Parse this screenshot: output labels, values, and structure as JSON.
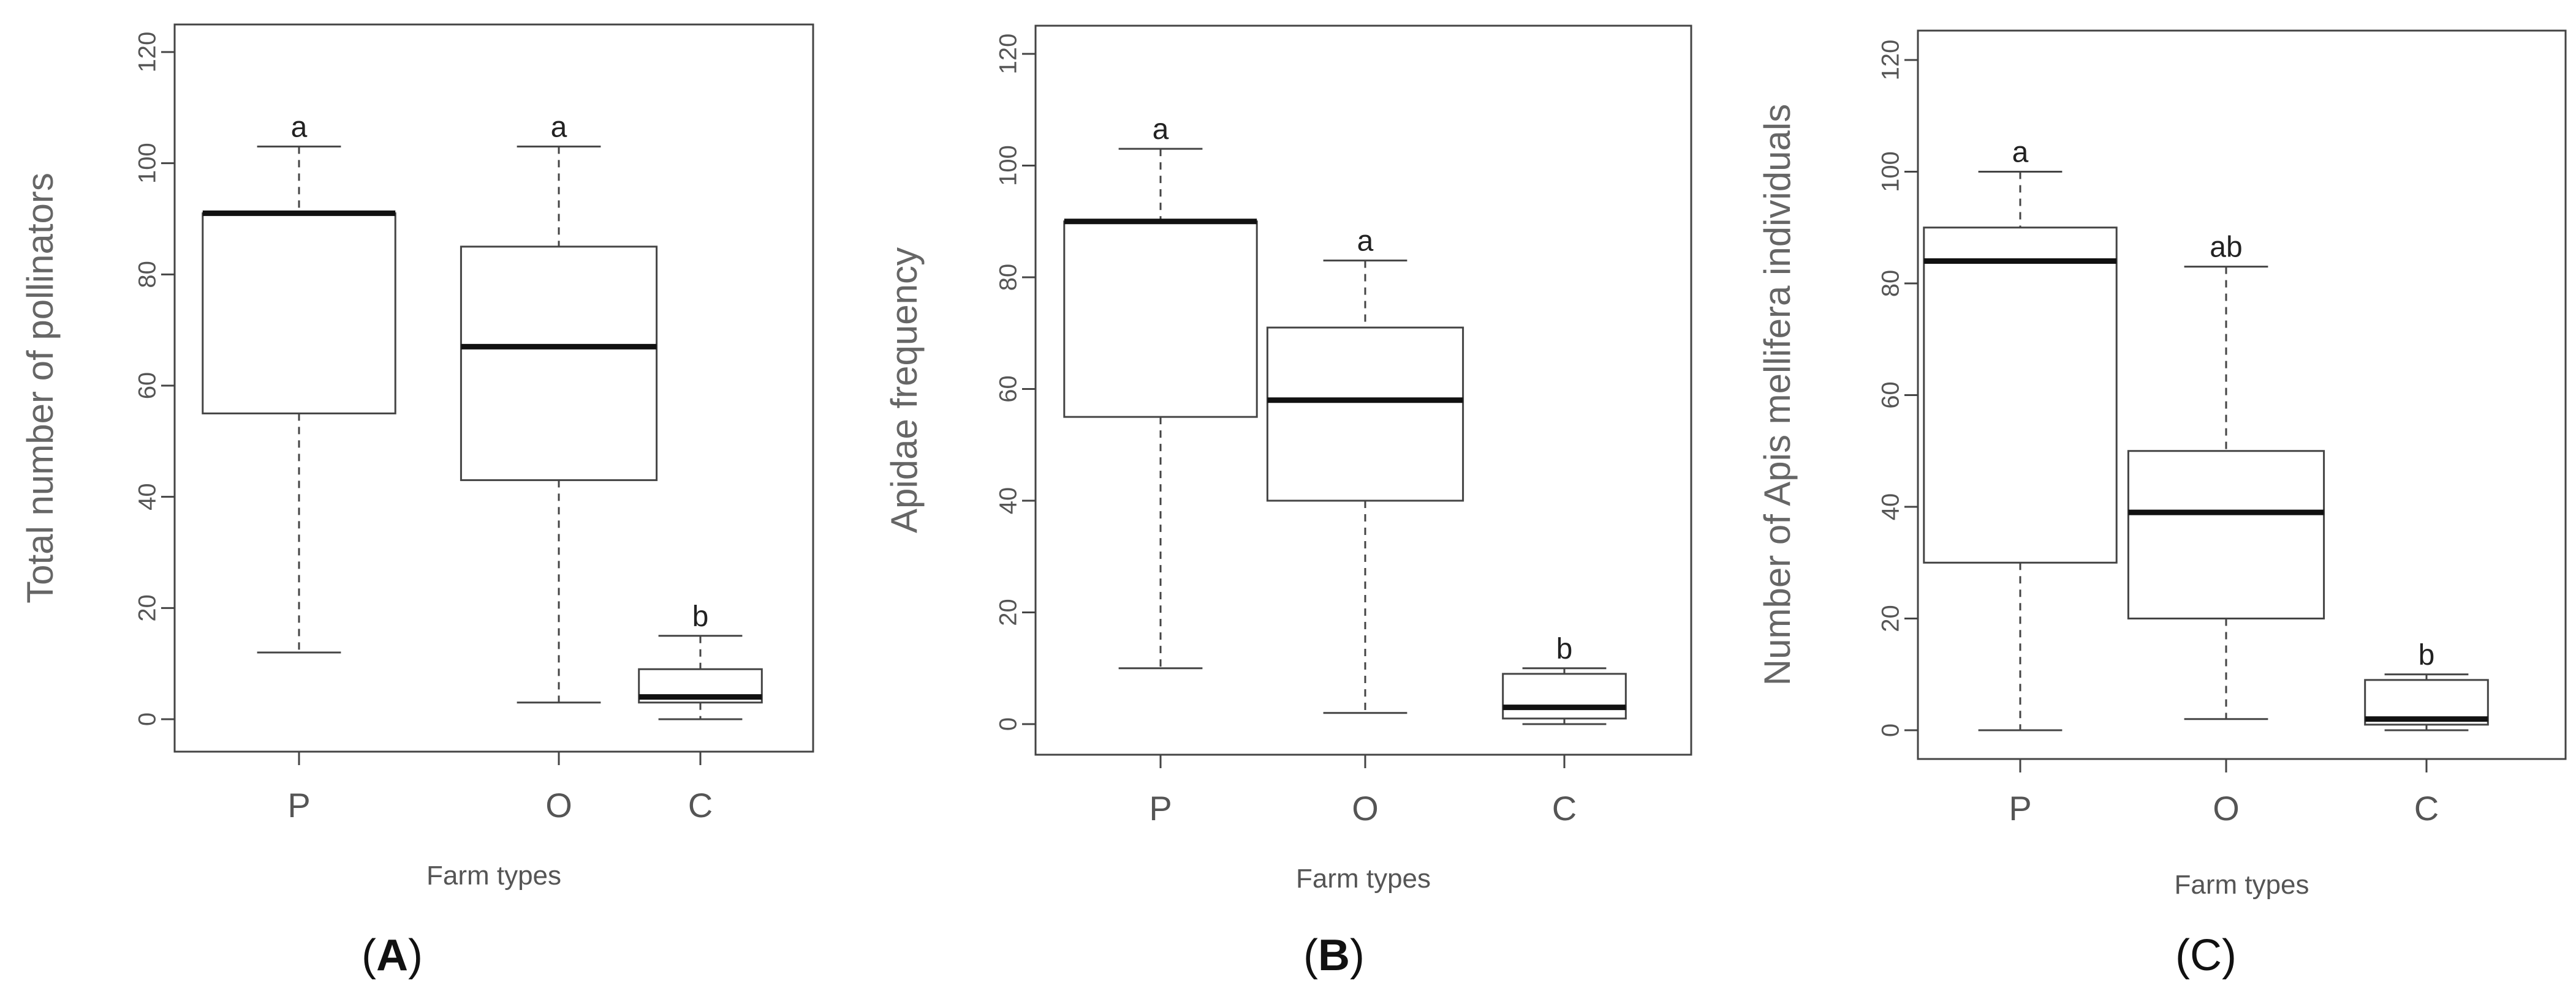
{
  "chart_data": [
    {
      "type": "boxplot",
      "panel_label": "A",
      "xlabel": "Farm types",
      "ylabel": "Total number of pollinators",
      "ylim": [
        0,
        120
      ],
      "yticks": [
        "0",
        "20",
        "40",
        "60",
        "80",
        "100",
        "120"
      ],
      "grid": false,
      "categories": [
        "P",
        "O",
        "C"
      ],
      "boxes": [
        {
          "category": "P",
          "min": 12,
          "q1": 55,
          "median": 91,
          "q3": 91,
          "max": 103,
          "letter": "a"
        },
        {
          "category": "O",
          "min": 3,
          "q1": 43,
          "median": 67,
          "q3": 85,
          "max": 103,
          "letter": "a"
        },
        {
          "category": "C",
          "min": 0,
          "q1": 3,
          "median": 4,
          "q3": 9,
          "max": 15,
          "letter": "b"
        }
      ]
    },
    {
      "type": "boxplot",
      "panel_label": "B",
      "xlabel": "Farm types",
      "ylabel": "Apidae frequency",
      "ylim": [
        0,
        120
      ],
      "yticks": [
        "0",
        "20",
        "40",
        "60",
        "80",
        "100",
        "120"
      ],
      "grid": false,
      "categories": [
        "P",
        "O",
        "C"
      ],
      "boxes": [
        {
          "category": "P",
          "min": 10,
          "q1": 55,
          "median": 90,
          "q3": 90,
          "max": 103,
          "letter": "a"
        },
        {
          "category": "O",
          "min": 2,
          "q1": 40,
          "median": 58,
          "q3": 71,
          "max": 83,
          "letter": "a"
        },
        {
          "category": "C",
          "min": 0,
          "q1": 1,
          "median": 3,
          "q3": 9,
          "max": 10,
          "letter": "b"
        }
      ]
    },
    {
      "type": "boxplot",
      "panel_label": "C",
      "xlabel": "Farm types",
      "ylabel": "Number of Apis mellifera individuals",
      "ylim": [
        0,
        120
      ],
      "yticks": [
        "0",
        "20",
        "40",
        "60",
        "80",
        "100",
        "120"
      ],
      "grid": false,
      "categories": [
        "P",
        "O",
        "C"
      ],
      "boxes": [
        {
          "category": "P",
          "min": 0,
          "q1": 30,
          "median": 84,
          "q3": 90,
          "max": 100,
          "letter": "a"
        },
        {
          "category": "O",
          "min": 2,
          "q1": 20,
          "median": 39,
          "q3": 50,
          "max": 83,
          "letter": "ab"
        },
        {
          "category": "C",
          "min": 0,
          "q1": 1,
          "median": 2,
          "q3": 9,
          "max": 10,
          "letter": "b"
        }
      ]
    }
  ]
}
